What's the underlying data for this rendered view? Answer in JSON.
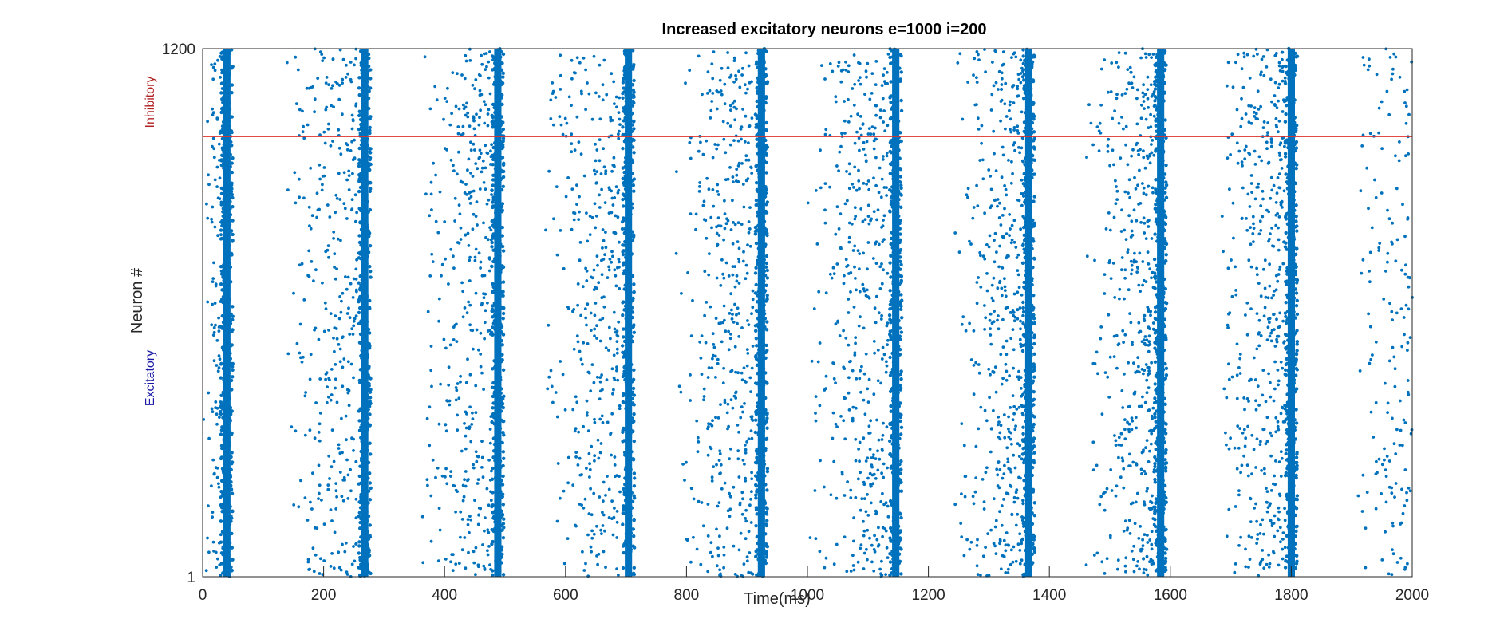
{
  "chart_data": {
    "type": "scatter",
    "title": "Increased excitatory neurons e=1000 i=200",
    "xlabel": "Time(ms)",
    "ylabel": "Neuron #",
    "xlim": [
      0,
      2000
    ],
    "ylim": [
      1,
      1200
    ],
    "xticks": [
      "0",
      "200",
      "400",
      "600",
      "800",
      "1000",
      "1200",
      "1400",
      "1600",
      "1800",
      "2000"
    ],
    "yticks": [
      "1",
      "1200"
    ],
    "grid": false,
    "legend": "none",
    "group_labels": {
      "inhibitory": "Inhibitory",
      "excitatory": "Excitatory"
    },
    "separator_neuron": 1000,
    "colors": {
      "spikes": "#0072BD",
      "separator": "#E0302A",
      "inhibitory_label": "#B22222",
      "excitatory_label": "#1A1AA6",
      "axes": "#262626"
    },
    "series": [
      {
        "burst_times_ms": [
          40,
          268,
          488,
          704,
          924,
          1146,
          1366,
          1584,
          1800
        ],
        "burst_width_ms": 20,
        "burst_neuron_range": [
          1,
          1200
        ],
        "scatter_clusters": [
          {
            "t_min": 0,
            "t_max": 35,
            "count": 140
          },
          {
            "t_min": 135,
            "t_max": 255,
            "count": 320
          },
          {
            "t_min": 360,
            "t_max": 478,
            "count": 360
          },
          {
            "t_min": 560,
            "t_max": 690,
            "count": 360
          },
          {
            "t_min": 780,
            "t_max": 910,
            "count": 400
          },
          {
            "t_min": 1000,
            "t_max": 1134,
            "count": 420
          },
          {
            "t_min": 1240,
            "t_max": 1355,
            "count": 400
          },
          {
            "t_min": 1460,
            "t_max": 1574,
            "count": 420
          },
          {
            "t_min": 1680,
            "t_max": 1790,
            "count": 420
          },
          {
            "t_min": 1900,
            "t_max": 2000,
            "count": 170
          }
        ]
      }
    ]
  }
}
